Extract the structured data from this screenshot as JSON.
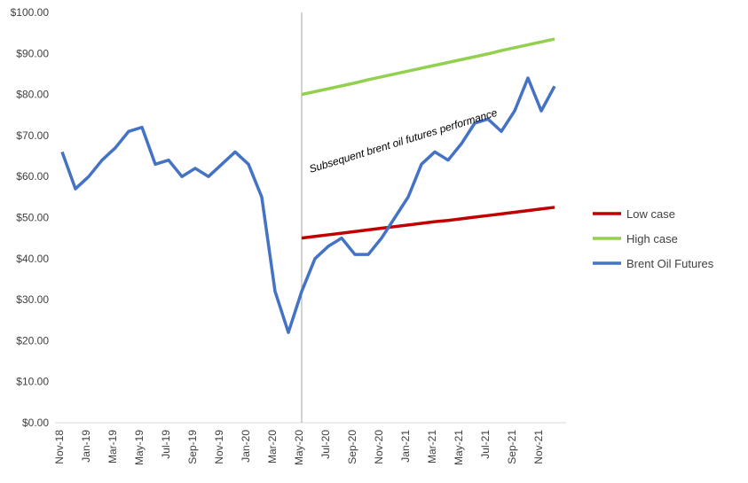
{
  "chart_data": {
    "type": "line",
    "categories": [
      "Nov-18",
      null,
      "Jan-19",
      null,
      "Mar-19",
      null,
      "May-19",
      null,
      "Jul-19",
      null,
      "Sep-19",
      null,
      "Nov-19",
      null,
      "Jan-20",
      null,
      "Mar-20",
      null,
      "May-20",
      null,
      "Jul-20",
      null,
      "Sep-20",
      null,
      "Nov-20",
      null,
      "Jan-21",
      null,
      "Mar-21",
      null,
      "May-21",
      null,
      "Jul-21",
      null,
      "Sep-21",
      null,
      "Nov-21",
      null
    ],
    "series": [
      {
        "name": "Low case",
        "color": "#c00000",
        "values": [
          null,
          null,
          null,
          null,
          null,
          null,
          null,
          null,
          null,
          null,
          null,
          null,
          null,
          null,
          null,
          null,
          null,
          null,
          45,
          45.4,
          45.8,
          46.2,
          46.6,
          47,
          47.4,
          47.8,
          48.2,
          48.6,
          49,
          49.3,
          49.7,
          50.1,
          50.5,
          50.9,
          51.3,
          51.7,
          52.1,
          52.5
        ]
      },
      {
        "name": "High case",
        "color": "#92d050",
        "values": [
          null,
          null,
          null,
          null,
          null,
          null,
          null,
          null,
          null,
          null,
          null,
          null,
          null,
          null,
          null,
          null,
          null,
          null,
          80,
          80.7,
          81.4,
          82.1,
          82.8,
          83.6,
          84.3,
          85,
          85.7,
          86.4,
          87.1,
          87.8,
          88.5,
          89.2,
          89.9,
          90.7,
          91.4,
          92.1,
          92.8,
          93.5
        ]
      },
      {
        "name": "Brent Oil Futures",
        "color": "#4472c4",
        "values": [
          66,
          57,
          60,
          64,
          67,
          71,
          72,
          63,
          64,
          60,
          62,
          60,
          63,
          66,
          63,
          55,
          32,
          22,
          32,
          40,
          43,
          45,
          41,
          41,
          45,
          50,
          55,
          63,
          66,
          64,
          68,
          73,
          74,
          71,
          76,
          84,
          76,
          82
        ]
      }
    ],
    "ylim": [
      0,
      100
    ],
    "yticks": [
      {
        "value": 0,
        "label": "$0.00"
      },
      {
        "value": 10,
        "label": "$10.00"
      },
      {
        "value": 20,
        "label": "$20.00"
      },
      {
        "value": 30,
        "label": "$30.00"
      },
      {
        "value": 40,
        "label": "$40.00"
      },
      {
        "value": 50,
        "label": "$50.00"
      },
      {
        "value": 60,
        "label": "$60.00"
      },
      {
        "value": 70,
        "label": "$70.00"
      },
      {
        "value": 80,
        "label": "$80.00"
      },
      {
        "value": 90,
        "label": "$90.00"
      },
      {
        "value": 100,
        "label": "$100.00"
      }
    ],
    "annotation": "Subsequent  brent oil futures performance",
    "legend": "right"
  }
}
